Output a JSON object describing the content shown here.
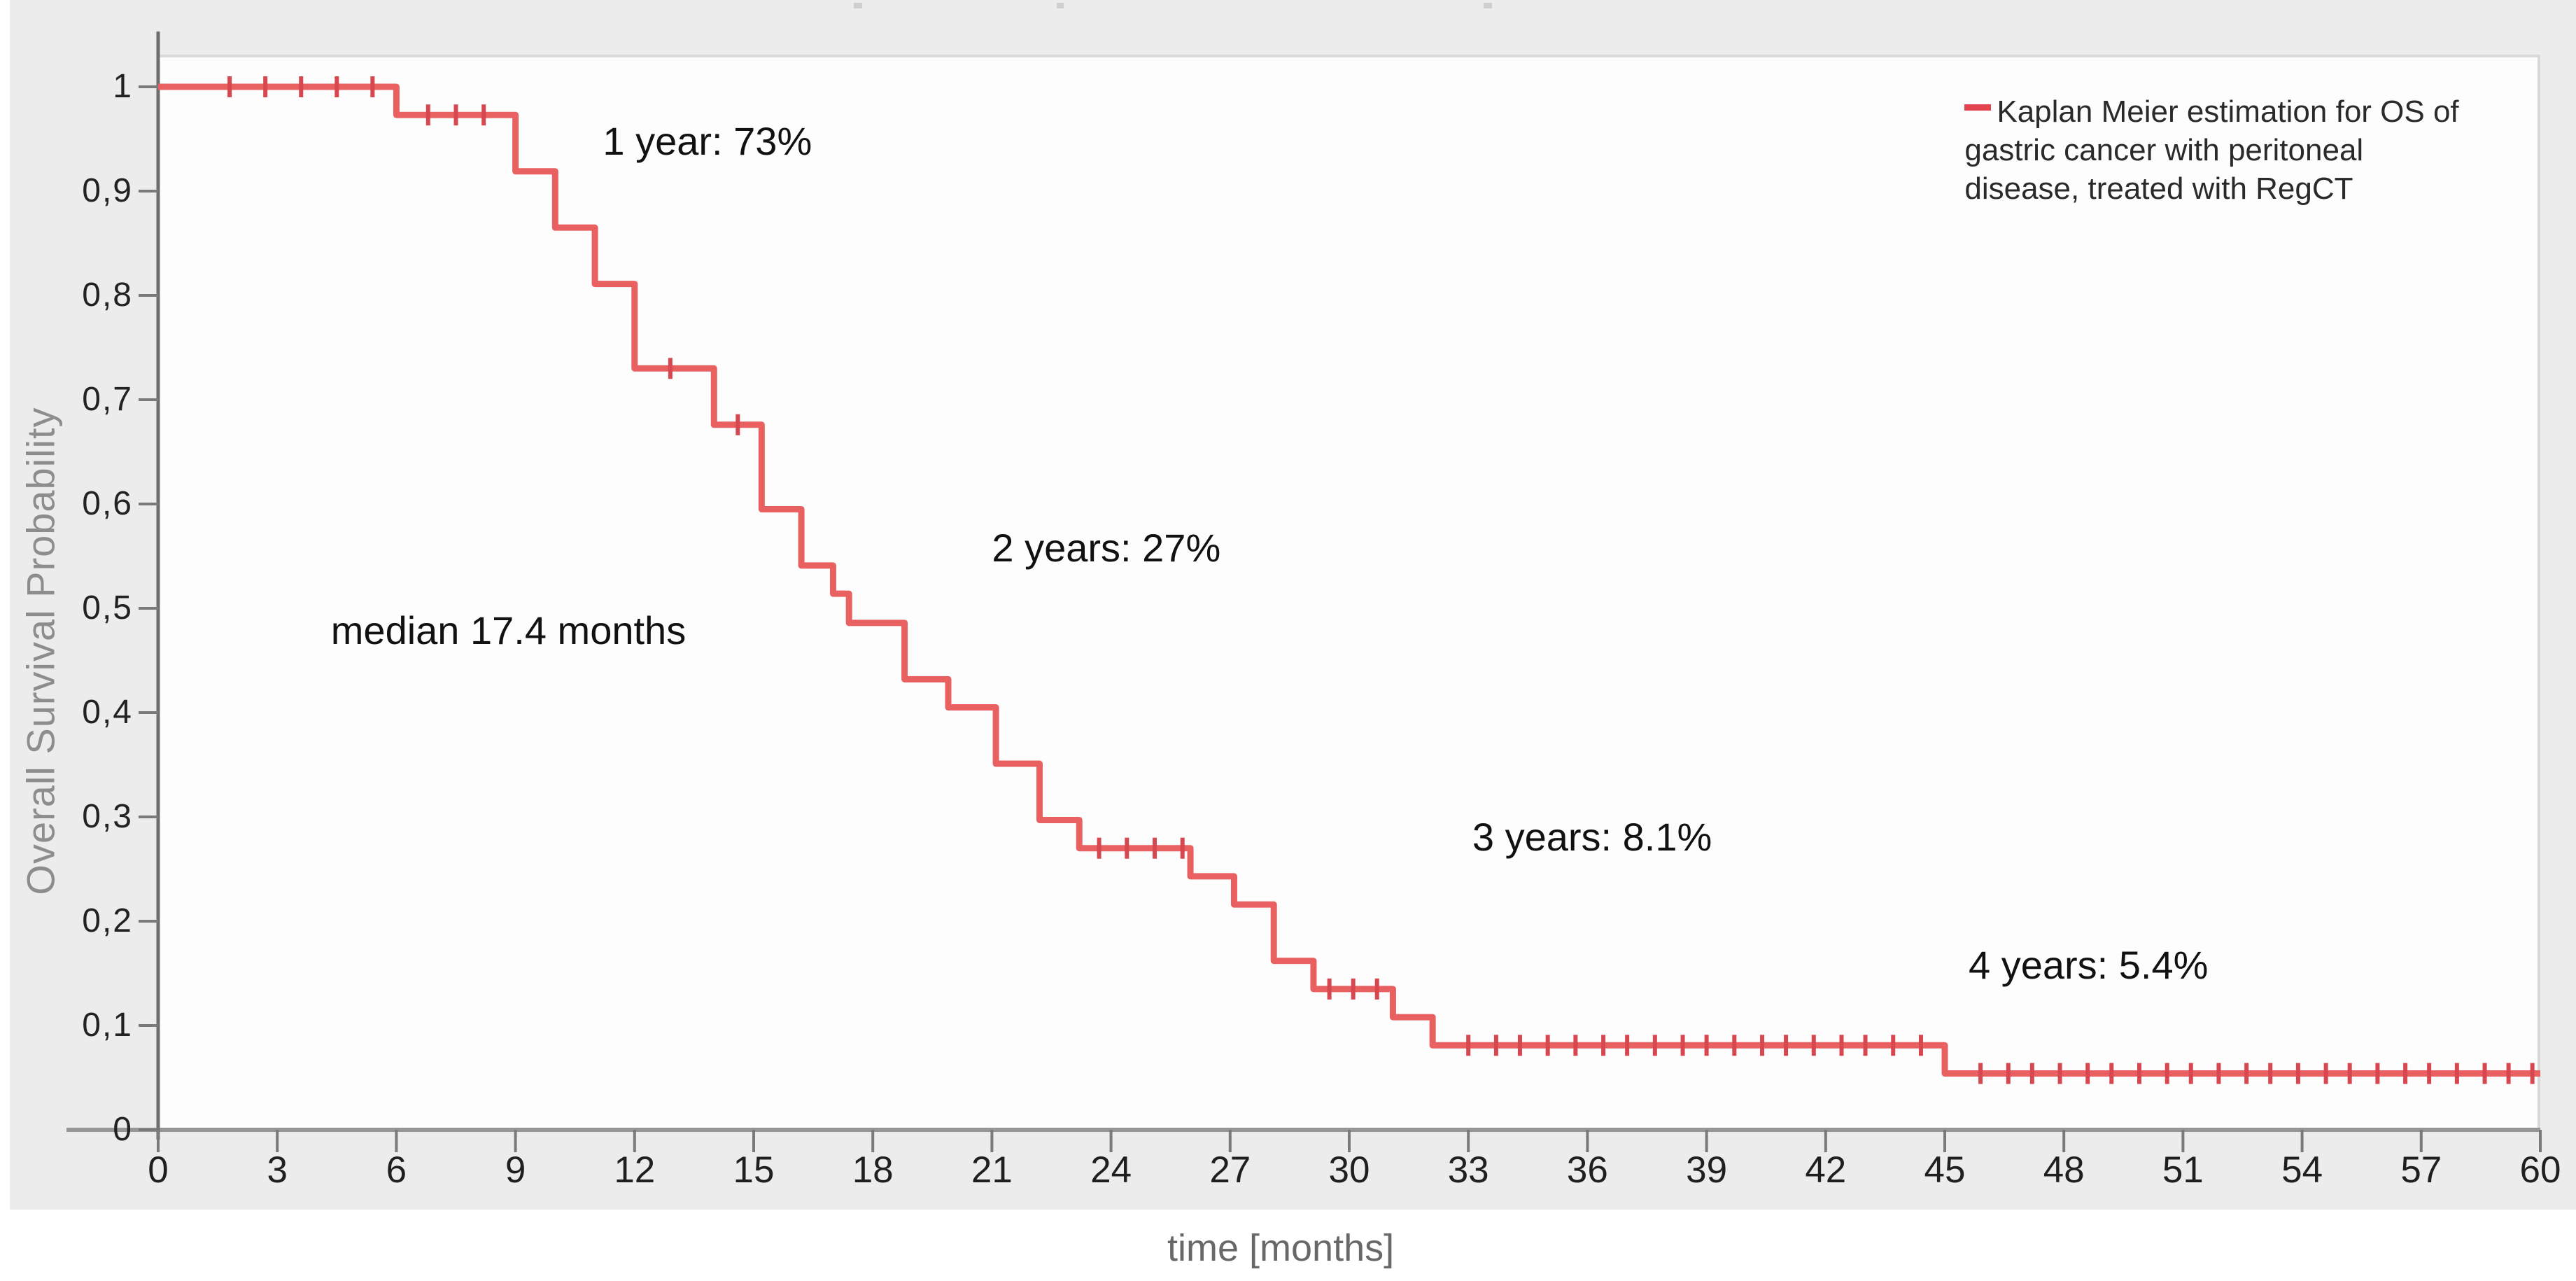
{
  "chart_data": {
    "type": "line",
    "subtype": "kaplan-meier-step",
    "title": "",
    "xlabel": "time [months]",
    "ylabel": "Overall Survival Probability",
    "xlim": [
      0,
      60
    ],
    "ylim": [
      0,
      1
    ],
    "grid": "off",
    "legend_position": "top-right",
    "x_tick_values": [
      0,
      3,
      6,
      9,
      12,
      15,
      18,
      21,
      24,
      27,
      30,
      33,
      36,
      39,
      42,
      45,
      48,
      51,
      54,
      57,
      60
    ],
    "x_tick_labels": [
      "0",
      "3",
      "6",
      "9",
      "12",
      "15",
      "18",
      "21",
      "24",
      "27",
      "30",
      "33",
      "36",
      "39",
      "42",
      "45",
      "48",
      "51",
      "54",
      "57",
      "60"
    ],
    "y_tick_values": [
      1,
      0.9,
      0.8,
      0.7,
      0.6,
      0.5,
      0.4,
      0.3,
      0.2,
      0.1,
      0
    ],
    "y_tick_labels": [
      "1",
      "0,9",
      "0,8",
      "0,7",
      "0,6",
      "0,5",
      "0,4",
      "0,3",
      "0,2",
      "0,1",
      "0"
    ],
    "series": [
      {
        "name": "Kaplan Meier estimation for OS of gastric cancer with peritoneal disease, treated with RegCT",
        "color": "#e96060",
        "censor_color": "#d7474f",
        "steps": [
          [
            0,
            1.0
          ],
          [
            6,
            0.973
          ],
          [
            9,
            0.919
          ],
          [
            10,
            0.865
          ],
          [
            11,
            0.811
          ],
          [
            12,
            0.73
          ],
          [
            14,
            0.676
          ],
          [
            15.2,
            0.595
          ],
          [
            16.2,
            0.541
          ],
          [
            17,
            0.514
          ],
          [
            17.4,
            0.486
          ],
          [
            18.8,
            0.432
          ],
          [
            19.9,
            0.405
          ],
          [
            21.1,
            0.351
          ],
          [
            22.2,
            0.297
          ],
          [
            23.2,
            0.27
          ],
          [
            26,
            0.243
          ],
          [
            27.1,
            0.216
          ],
          [
            28.1,
            0.162
          ],
          [
            29.1,
            0.135
          ],
          [
            31.1,
            0.108
          ],
          [
            32.1,
            0.081
          ],
          [
            45,
            0.054
          ]
        ],
        "end_time": 60,
        "censor_times": [
          1.8,
          2.7,
          3.6,
          4.5,
          5.4,
          6.8,
          7.5,
          8.2,
          12.9,
          14.6,
          23.7,
          24.4,
          25.1,
          25.8,
          29.5,
          30.1,
          30.7,
          33,
          33.7,
          34.3,
          35,
          35.7,
          36.4,
          37,
          37.7,
          38.4,
          39,
          39.7,
          40.4,
          41,
          41.7,
          42.4,
          43,
          43.7,
          44.4,
          45.9,
          46.6,
          47.2,
          47.9,
          48.6,
          49.2,
          49.9,
          50.6,
          51.2,
          51.9,
          52.6,
          53.2,
          53.9,
          54.6,
          55.2,
          55.9,
          56.6,
          57.2,
          57.9,
          58.6,
          59.2,
          59.8
        ]
      }
    ],
    "annotations": [
      {
        "text": "1 year: 73%",
        "t": 11.2,
        "p": 0.97
      },
      {
        "text": "2 years: 27%",
        "t": 21.0,
        "p": 0.58
      },
      {
        "text": "median 17.4 months",
        "t": 4.35,
        "p": 0.501
      },
      {
        "text": "3 years: 8.1%",
        "t": 33.1,
        "p": 0.303
      },
      {
        "text": "4 years: 5.4%",
        "t": 45.6,
        "p": 0.18
      }
    ],
    "survival_summary": {
      "one_year": "73%",
      "two_years": "27%",
      "three_years": "8.1%",
      "four_years": "5.4%",
      "median": "17.4 months"
    }
  },
  "legend": {
    "lines": [
      "Kaplan Meier estimation for OS of",
      "gastric cancer with peritoneal",
      "disease, treated with RegCT"
    ],
    "t": 45.5,
    "p": 0.9946
  },
  "colors": {
    "curve": "#e96060",
    "censor_mark": "#d7474f",
    "legend_dash": "#e3434e",
    "panel_background": "#edecec",
    "plot_background": "#fdfdfd",
    "x_axis_line": "#959595",
    "y_axis_line": "#6e6e6e",
    "tick": "#7a7a7a",
    "tick_label": "#1f1f1f",
    "annotation_text": "#111111",
    "axis_title": "#8d8d8d"
  }
}
